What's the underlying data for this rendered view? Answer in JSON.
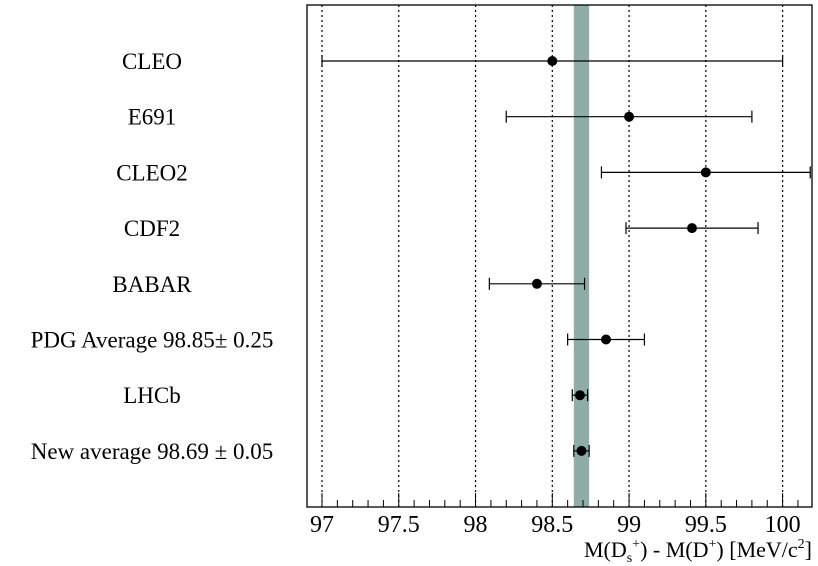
{
  "chart_data": {
    "type": "scatter",
    "subtype": "errorbar-summary",
    "title": "",
    "xlabel": "M(D_s^+) - M(D^+) [MeV/c^2]",
    "xlabel_parts": {
      "m1": "M(D",
      "sub1": "s",
      "sup1": "+",
      "mid": ") - M(D",
      "sup2": "+",
      "end": ") [MeV/c",
      "sup3": "2",
      "close": "]"
    },
    "ylabel": "",
    "xlim": [
      96.95,
      100.1
    ],
    "x_ticks": [
      "97",
      "97.5",
      "98",
      "98.5",
      "99",
      "99.5",
      "100"
    ],
    "x_tick_values": [
      97,
      97.5,
      98,
      98.5,
      99,
      99.5,
      100
    ],
    "grid": "vertical dotted lines at major ticks",
    "band": {
      "from": 98.64,
      "to": 98.74,
      "color": "#8fada6"
    },
    "measurements": [
      {
        "label": "CLEO",
        "value": 98.5,
        "err_low": 1.5,
        "err_high": 1.5
      },
      {
        "label": "E691",
        "value": 99.0,
        "err_low": 0.8,
        "err_high": 0.8
      },
      {
        "label": "CLEO2",
        "value": 99.5,
        "err_low": 0.68,
        "err_high": 0.68
      },
      {
        "label": "CDF2",
        "value": 99.41,
        "err_low": 0.43,
        "err_high": 0.43
      },
      {
        "label": "BABAR",
        "value": 98.4,
        "err_low": 0.31,
        "err_high": 0.31
      },
      {
        "label": "PDG Average 98.85± 0.25",
        "value": 98.85,
        "err_low": 0.25,
        "err_high": 0.25
      },
      {
        "label": "LHCb",
        "value": 98.68,
        "err_low": 0.05,
        "err_high": 0.05
      },
      {
        "label": "New average 98.69 ± 0.05",
        "value": 98.69,
        "err_low": 0.05,
        "err_high": 0.05
      }
    ]
  }
}
